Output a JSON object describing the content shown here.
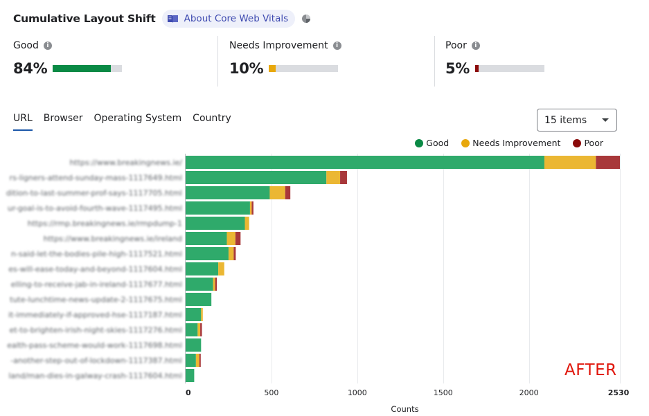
{
  "header": {
    "title": "Cumulative Layout Shift",
    "about_label": "About Core Web Vitals"
  },
  "metrics": [
    {
      "label": "Good",
      "value": "84%",
      "fraction": 0.84,
      "color": "#0a8a45"
    },
    {
      "label": "Needs Improvement",
      "value": "10%",
      "fraction": 0.1,
      "color": "#e8a80c"
    },
    {
      "label": "Poor",
      "value": "5%",
      "fraction": 0.05,
      "color": "#8b0a0a"
    }
  ],
  "tabs": [
    {
      "label": "URL",
      "active": true
    },
    {
      "label": "Browser",
      "active": false
    },
    {
      "label": "Operating System",
      "active": false
    },
    {
      "label": "Country",
      "active": false
    }
  ],
  "select": {
    "value": "15 items"
  },
  "legend": [
    {
      "label": "Good",
      "color": "#0a8a45"
    },
    {
      "label": "Needs Improvement",
      "color": "#e8a80c"
    },
    {
      "label": "Poor",
      "color": "#8b0a0a"
    }
  ],
  "chart_data": {
    "type": "bar",
    "orientation": "horizontal",
    "stacked": true,
    "categories": [
      "https://www.breakingnews.ie/",
      "rs-ligners-attend-sunday-mass-1117649.html",
      "dition-to-last-summer-prof-says-1117705.html",
      "ur-goal-is-to-avoid-fourth-wave-1117495.html",
      "https://rmp.breakingnews.ie/rmpdump-1",
      "https://www.breakingnews.ie/ireland",
      "n-said-let-the-bodies-pile-high-1117521.html",
      "es-will-ease-today-and-beyond-1117604.html",
      "elling-to-receive-jab-in-ireland-1117677.html",
      "tute-lunchtime-news-update-2-1117675.html",
      "it-immediately-if-approved-hse-1117187.html",
      "et-to-brighten-irish-night-skies-1117276.html",
      "ealth-pass-scheme-would-work-1117698.html",
      "-another-step-out-of-lockdown-1117387.html",
      "land/man-dies-in-galway-crash-1117604.html"
    ],
    "series": [
      {
        "name": "Good",
        "color": "#2faa6b",
        "values": [
          2090,
          820,
          490,
          375,
          345,
          240,
          250,
          190,
          160,
          150,
          90,
          70,
          90,
          60,
          50
        ]
      },
      {
        "name": "Needs Improvement",
        "color": "#ebb733",
        "values": [
          300,
          80,
          90,
          10,
          25,
          50,
          30,
          35,
          12,
          0,
          10,
          15,
          0,
          20,
          0
        ]
      },
      {
        "name": "Poor",
        "color": "#a8383a",
        "values": [
          140,
          40,
          30,
          10,
          0,
          30,
          12,
          0,
          10,
          0,
          0,
          10,
          0,
          8,
          0
        ]
      }
    ],
    "x_ticks": [
      "0",
      "500",
      "1000",
      "1500",
      "2000",
      "2530"
    ],
    "x_tick_values": [
      0,
      500,
      1000,
      1500,
      2000,
      2530
    ],
    "xlabel": "Counts",
    "xlim": [
      0,
      2530
    ],
    "grid": true
  },
  "watermark": "AFTER"
}
